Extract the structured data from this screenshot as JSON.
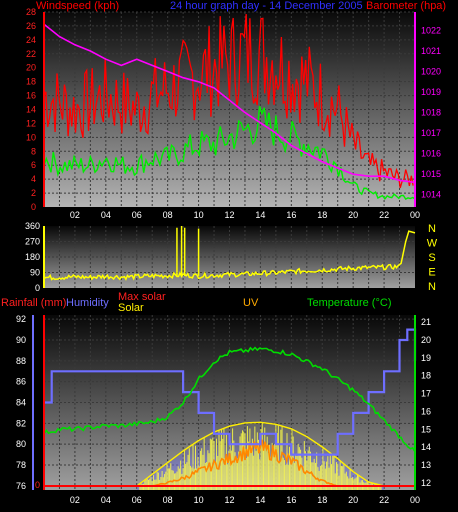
{
  "header": {
    "windspeed_label": "Windspeed (kph)",
    "title": "24 hour graph day - 14 December 2005",
    "barometer_label": "Barometer (hpa)"
  },
  "middle": {
    "compass": [
      "N",
      "W",
      "S",
      "E",
      "N"
    ]
  },
  "bottom_header": {
    "rainfall_label": "Rainfall (mm)",
    "humidity_label": "Humidity",
    "maxsolar_label": "Max solar",
    "solar_label": "Solar",
    "uv_label": "UV",
    "temperature_label": "Temperature (°C)"
  },
  "colors": {
    "wind_gust": "#ff0000",
    "wind_avg": "#00ee00",
    "barometer": "#ff00ff",
    "direction": "#ffff00",
    "humidity": "#6e6eff",
    "temperature": "#00dd00",
    "solar": "#ffff44",
    "maxsolar": "#ffee00",
    "uv": "#ff8800",
    "rainfall": "#ff0000",
    "title": "#3030ff"
  },
  "chart_data": [
    {
      "type": "line",
      "name": "wind-baro",
      "x_ticks": [
        "02",
        "04",
        "06",
        "08",
        "10",
        "12",
        "14",
        "16",
        "18",
        "20",
        "22",
        "00"
      ],
      "y_left_ticks": [
        "0",
        "2",
        "4",
        "6",
        "8",
        "10",
        "12",
        "14",
        "16",
        "18",
        "20",
        "22",
        "24",
        "26",
        "28"
      ],
      "y_left_range": [
        0,
        28
      ],
      "y_right_ticks": [
        "1014",
        "1015",
        "1016",
        "1017",
        "1018",
        "1019",
        "1020",
        "1021",
        "1022"
      ],
      "y_right_range": [
        1013.4,
        1022.9
      ],
      "x_range": [
        0,
        24
      ],
      "series": [
        {
          "name": "Windspeed gust",
          "color": "#ff0000",
          "x": [
            0,
            1,
            2,
            3,
            4,
            5,
            6,
            7,
            8,
            9,
            10,
            11,
            12,
            13,
            14,
            15,
            16,
            17,
            18,
            19,
            20,
            21,
            22,
            23,
            24
          ],
          "values": [
            16,
            15,
            14,
            15,
            16,
            15,
            14,
            16,
            17,
            18,
            19,
            20,
            21,
            22,
            22,
            21,
            19,
            18,
            16,
            14,
            9,
            6,
            5,
            4,
            4
          ]
        },
        {
          "name": "Windspeed average",
          "color": "#00ee00",
          "x": [
            0,
            1,
            2,
            3,
            4,
            5,
            6,
            7,
            8,
            9,
            10,
            11,
            12,
            13,
            14,
            15,
            16,
            17,
            18,
            19,
            20,
            21,
            22,
            23,
            24
          ],
          "values": [
            7,
            6,
            6,
            6,
            7,
            6,
            6,
            7,
            7,
            8,
            9,
            9,
            10,
            11,
            12,
            11,
            10,
            9,
            8,
            6,
            3,
            2,
            1.5,
            1.5,
            1.5
          ]
        },
        {
          "name": "Barometer",
          "color": "#ff00ff",
          "x": [
            0,
            1,
            2,
            3,
            4,
            5,
            6,
            7,
            8,
            9,
            10,
            11,
            12,
            13,
            14,
            15,
            16,
            17,
            18,
            19,
            20,
            21,
            22,
            23,
            24
          ],
          "values": [
            1022.3,
            1021.7,
            1021.3,
            1021.0,
            1020.6,
            1020.3,
            1020.6,
            1020.3,
            1020.0,
            1019.7,
            1019.5,
            1019.2,
            1018.6,
            1018.0,
            1017.5,
            1017.0,
            1016.4,
            1016.0,
            1015.6,
            1015.3,
            1015.0,
            1014.9,
            1014.9,
            1014.7,
            1014.6
          ]
        }
      ]
    },
    {
      "type": "line",
      "name": "wind-direction",
      "y_ticks": [
        "0",
        "90",
        "180",
        "270",
        "360"
      ],
      "y_range": [
        0,
        360
      ],
      "x_range": [
        0,
        24
      ],
      "series": [
        {
          "name": "Direction",
          "color": "#ffff00",
          "x": [
            0,
            1,
            2,
            3,
            4,
            5,
            6,
            7,
            8,
            9,
            10,
            11,
            12,
            13,
            14,
            15,
            16,
            17,
            18,
            19,
            20,
            21,
            22,
            23,
            23.5,
            24
          ],
          "values": [
            60,
            62,
            65,
            62,
            68,
            64,
            66,
            70,
            72,
            75,
            70,
            74,
            78,
            80,
            85,
            88,
            95,
            100,
            105,
            110,
            115,
            118,
            120,
            125,
            270,
            320
          ],
          "spikes_x": [
            8.6,
            8.9,
            9.1,
            10.0
          ],
          "spikes_values": [
            350,
            360,
            350,
            345
          ]
        }
      ]
    },
    {
      "type": "line",
      "name": "rain-humidity-solar-temperature",
      "x_ticks": [
        "02",
        "04",
        "06",
        "08",
        "10",
        "12",
        "14",
        "16",
        "18",
        "20",
        "22",
        "00"
      ],
      "x_range": [
        0,
        24
      ],
      "humidity_ticks": [
        "76",
        "78",
        "80",
        "82",
        "84",
        "86",
        "88",
        "90",
        "92"
      ],
      "humidity_range": [
        75.6,
        92.4
      ],
      "temperature_ticks": [
        "12",
        "13",
        "14",
        "15",
        "16",
        "17",
        "18",
        "19",
        "20",
        "21"
      ],
      "temperature_range": [
        11.6,
        21.4
      ],
      "rainfall_ticks": [
        "0"
      ],
      "series": [
        {
          "name": "Humidity",
          "color": "#6e6eff",
          "x": [
            0,
            0.5,
            1,
            2,
            3,
            4,
            5,
            6,
            7,
            8,
            8.5,
            9,
            10,
            11,
            12,
            13,
            14,
            15,
            16,
            17,
            18,
            19,
            20,
            21,
            22,
            23,
            23.5,
            24
          ],
          "values": [
            84,
            87,
            87,
            87,
            87,
            87,
            87,
            87,
            87,
            87,
            87,
            85,
            83,
            81,
            80,
            80,
            81,
            80,
            79,
            79,
            79,
            81,
            83,
            85,
            87,
            90,
            91,
            88
          ]
        },
        {
          "name": "Temperature",
          "color": "#00dd00",
          "x": [
            0,
            1,
            2,
            3,
            4,
            5,
            6,
            7,
            8,
            9,
            10,
            11,
            12,
            13,
            14,
            15,
            16,
            17,
            18,
            19,
            20,
            21,
            22,
            23,
            24
          ],
          "values": [
            14.8,
            15.0,
            15.0,
            15.1,
            15.2,
            15.2,
            15.3,
            15.4,
            15.7,
            16.5,
            17.8,
            18.8,
            19.3,
            19.4,
            19.5,
            19.4,
            19.2,
            18.8,
            18.4,
            17.8,
            17.2,
            16.4,
            15.5,
            14.6,
            13.7
          ]
        },
        {
          "name": "Max solar",
          "color": "#ffee00",
          "x": [
            6,
            7,
            8,
            9,
            10,
            11,
            12,
            13,
            14,
            15,
            16,
            17,
            18,
            19,
            20,
            21,
            22
          ],
          "values": [
            0,
            0.18,
            0.36,
            0.54,
            0.7,
            0.83,
            0.92,
            0.97,
            0.98,
            0.95,
            0.88,
            0.76,
            0.6,
            0.42,
            0.22,
            0.06,
            0
          ]
        },
        {
          "name": "UV",
          "color": "#ff8800",
          "x": [
            7,
            8,
            9,
            10,
            11,
            12,
            13,
            14,
            15,
            16,
            17,
            18,
            19
          ],
          "values": [
            0,
            0.05,
            0.12,
            0.22,
            0.32,
            0.42,
            0.52,
            0.58,
            0.5,
            0.38,
            0.22,
            0.08,
            0
          ]
        }
      ]
    }
  ]
}
